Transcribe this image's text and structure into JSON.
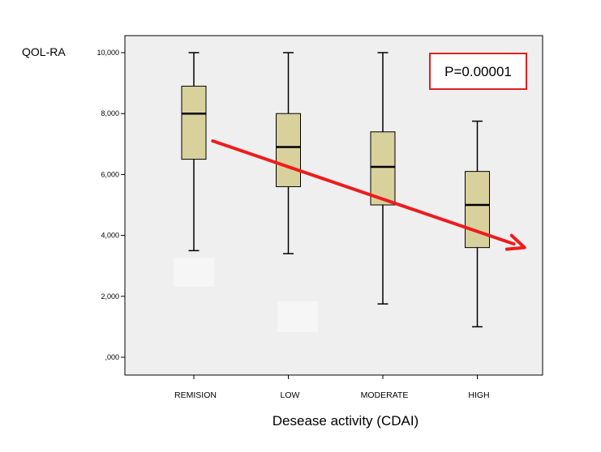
{
  "chart_data": {
    "type": "boxplot",
    "ylabel": "QOL-RA",
    "xlabel": "Desease activity (CDAI)",
    "annotation": "P=0.00001",
    "ylim": [
      0,
      10
    ],
    "yticks": [
      {
        "value": 0,
        "label": ",000"
      },
      {
        "value": 2,
        "label": "2,000"
      },
      {
        "value": 4,
        "label": "4,000"
      },
      {
        "value": 6,
        "label": "6,000"
      },
      {
        "value": 8,
        "label": "8,000"
      },
      {
        "value": 10,
        "label": "10,000"
      }
    ],
    "categories": [
      "REMISION",
      "LOW",
      "MODERATE",
      "HIGH"
    ],
    "boxes": [
      {
        "category": "REMISION",
        "min": 3.5,
        "q1": 6.5,
        "median": 8.0,
        "q3": 8.9,
        "max": 10.0
      },
      {
        "category": "LOW",
        "min": 3.4,
        "q1": 5.6,
        "median": 6.9,
        "q3": 8.0,
        "max": 10.0
      },
      {
        "category": "MODERATE",
        "min": 1.75,
        "q1": 5.0,
        "median": 6.25,
        "q3": 7.4,
        "max": 10.0
      },
      {
        "category": "HIGH",
        "min": 1.0,
        "q1": 3.6,
        "median": 5.0,
        "q3": 6.1,
        "max": 7.75
      }
    ],
    "trend_arrow": {
      "from": {
        "category_pos": 0.2,
        "value": 7.1
      },
      "to": {
        "category_pos": 3.5,
        "value": 3.6
      },
      "color": "#ee1c1c"
    },
    "colors": {
      "box_fill": "#d9d19c",
      "plot_bg": "#efefef",
      "annotation_border": "#e02020"
    },
    "grid": false
  }
}
